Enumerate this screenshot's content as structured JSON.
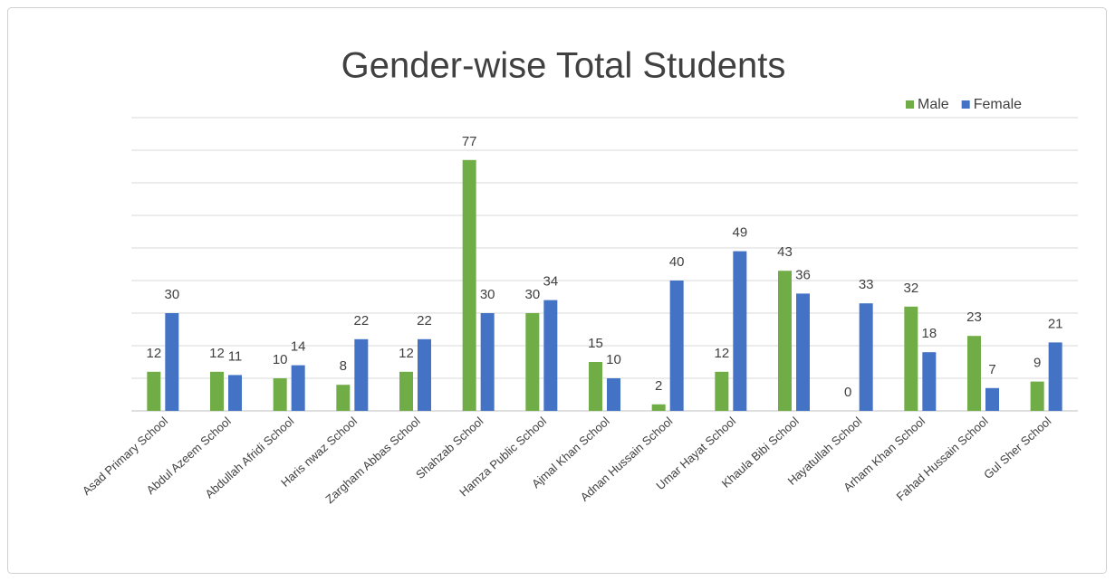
{
  "chart_data": {
    "type": "bar",
    "title": "Gender-wise Total Students",
    "categories": [
      "Asad Primary School",
      "Abdul Azeem School",
      "Abdullah Afridi School",
      "Haris nwaz School",
      "Zargham Abbas School",
      "Shahzab School",
      "Hamza Public School",
      "Ajmal Khan School",
      "Adnan Hussain School",
      "Umar Hayat School",
      "Khaula Bibi School",
      "Hayatullah School",
      "Arham Khan School",
      "Fahad Hussain  School",
      "Gul Sher School"
    ],
    "series": [
      {
        "name": "Male",
        "color": "#70ad47",
        "values": [
          12,
          12,
          10,
          8,
          12,
          77,
          30,
          15,
          2,
          12,
          43,
          0,
          32,
          23,
          9
        ]
      },
      {
        "name": "Female",
        "color": "#4472c4",
        "values": [
          30,
          11,
          14,
          22,
          22,
          30,
          34,
          10,
          40,
          49,
          36,
          33,
          18,
          7,
          21
        ]
      }
    ],
    "ylim": [
      0,
      90
    ],
    "yticks": [
      0,
      10,
      20,
      30,
      40,
      50,
      60,
      70,
      80,
      90
    ],
    "grid": true,
    "legend": "top-right"
  }
}
